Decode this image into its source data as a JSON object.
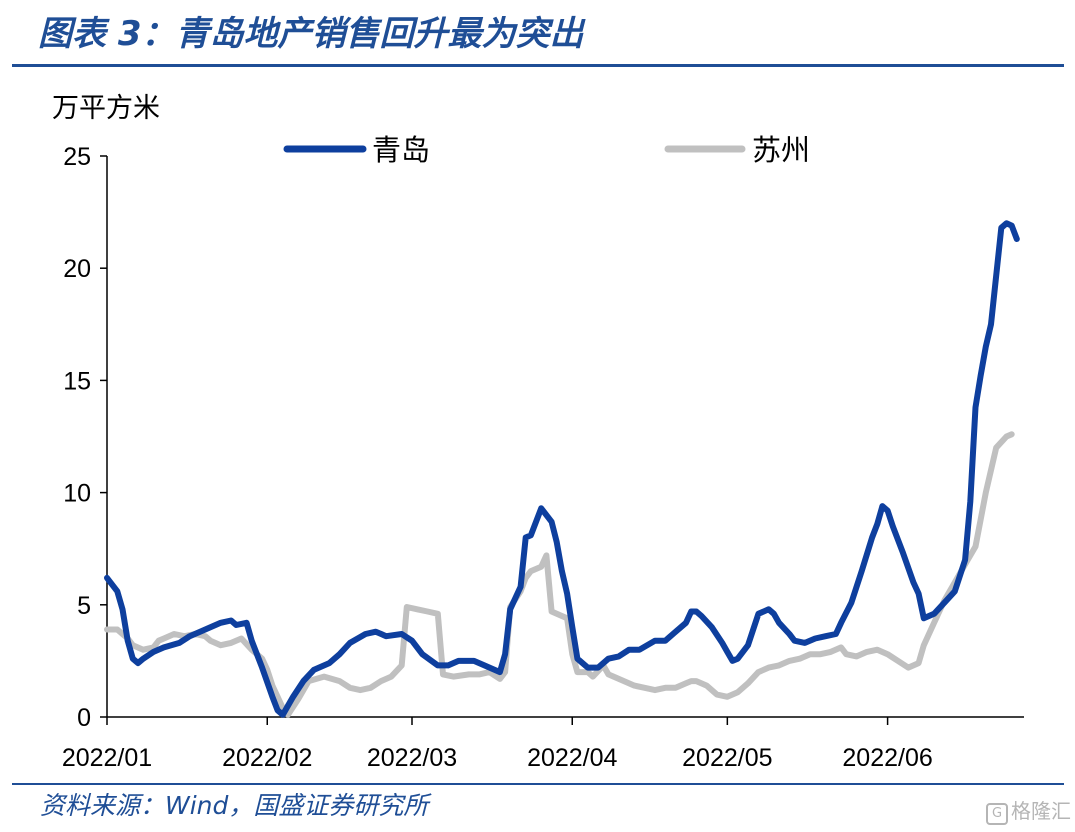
{
  "header": {
    "title": "图表 3：青岛地产销售回升最为突出"
  },
  "source": "资料来源：Wind，国盛证券研究所",
  "watermark": "格隆汇",
  "chart_data": {
    "type": "line",
    "unit_label": "万平方米",
    "x_labels": [
      "2022/01",
      "2022/02",
      "2022/03",
      "2022/04",
      "2022/05",
      "2022/06"
    ],
    "x_label_positions": [
      0,
      31,
      59,
      90,
      120,
      151
    ],
    "x_range": [
      0,
      177
    ],
    "y_ticks": [
      0,
      5,
      10,
      15,
      20,
      25
    ],
    "ylim": [
      0,
      25
    ],
    "legend_position": "top",
    "series": [
      {
        "name": "青岛",
        "color": "#0e3f9e",
        "points": [
          [
            0,
            6.2
          ],
          [
            2,
            5.6
          ],
          [
            3,
            4.8
          ],
          [
            4,
            3.4
          ],
          [
            5,
            2.6
          ],
          [
            6,
            2.4
          ],
          [
            7,
            2.6
          ],
          [
            9,
            2.9
          ],
          [
            11,
            3.1
          ],
          [
            14,
            3.3
          ],
          [
            16,
            3.6
          ],
          [
            18,
            3.8
          ],
          [
            20,
            4.0
          ],
          [
            22,
            4.2
          ],
          [
            24,
            4.3
          ],
          [
            25,
            4.1
          ],
          [
            27,
            4.2
          ],
          [
            28,
            3.4
          ],
          [
            30,
            2.2
          ],
          [
            32,
            0.9
          ],
          [
            33,
            0.3
          ],
          [
            34,
            0.1
          ],
          [
            36,
            0.9
          ],
          [
            38,
            1.6
          ],
          [
            40,
            2.1
          ],
          [
            43,
            2.4
          ],
          [
            45,
            2.8
          ],
          [
            47,
            3.3
          ],
          [
            50,
            3.7
          ],
          [
            52,
            3.8
          ],
          [
            54,
            3.6
          ],
          [
            57,
            3.7
          ],
          [
            59,
            3.4
          ],
          [
            61,
            2.8
          ],
          [
            64,
            2.3
          ],
          [
            66,
            2.3
          ],
          [
            68,
            2.5
          ],
          [
            71,
            2.5
          ],
          [
            73,
            2.3
          ],
          [
            76,
            2.0
          ],
          [
            77,
            2.8
          ],
          [
            78,
            4.8
          ],
          [
            80,
            5.8
          ],
          [
            81,
            8.0
          ],
          [
            82,
            8.1
          ],
          [
            84,
            9.3
          ],
          [
            86,
            8.7
          ],
          [
            87,
            7.8
          ],
          [
            88,
            6.5
          ],
          [
            89,
            5.5
          ],
          [
            90,
            4.0
          ],
          [
            91,
            2.6
          ],
          [
            93,
            2.2
          ],
          [
            95,
            2.2
          ],
          [
            97,
            2.6
          ],
          [
            99,
            2.7
          ],
          [
            101,
            3.0
          ],
          [
            103,
            3.0
          ],
          [
            106,
            3.4
          ],
          [
            108,
            3.4
          ],
          [
            110,
            3.8
          ],
          [
            112,
            4.2
          ],
          [
            113,
            4.7
          ],
          [
            114,
            4.7
          ],
          [
            115,
            4.5
          ],
          [
            117,
            4.0
          ],
          [
            119,
            3.3
          ],
          [
            120,
            2.9
          ],
          [
            121,
            2.5
          ],
          [
            122,
            2.6
          ],
          [
            124,
            3.2
          ],
          [
            126,
            4.6
          ],
          [
            128,
            4.8
          ],
          [
            129,
            4.6
          ],
          [
            130,
            4.2
          ],
          [
            132,
            3.7
          ],
          [
            133,
            3.4
          ],
          [
            135,
            3.3
          ],
          [
            137,
            3.5
          ],
          [
            139,
            3.6
          ],
          [
            141,
            3.7
          ],
          [
            142,
            4.2
          ],
          [
            144,
            5.1
          ],
          [
            146,
            6.5
          ],
          [
            148,
            8.0
          ],
          [
            149,
            8.6
          ],
          [
            150,
            9.4
          ],
          [
            151,
            9.2
          ],
          [
            152,
            8.5
          ],
          [
            154,
            7.3
          ],
          [
            156,
            6.0
          ],
          [
            157,
            5.5
          ],
          [
            158,
            4.4
          ],
          [
            160,
            4.6
          ],
          [
            162,
            5.1
          ],
          [
            164,
            5.6
          ],
          [
            166,
            7.0
          ],
          [
            167,
            9.6
          ],
          [
            168,
            13.8
          ],
          [
            169,
            15.2
          ],
          [
            170,
            16.5
          ],
          [
            171,
            17.5
          ],
          [
            173,
            21.8
          ],
          [
            174,
            22.0
          ],
          [
            175,
            21.9
          ],
          [
            176,
            21.3
          ]
        ]
      },
      {
        "name": "苏州",
        "color": "#c0c0c0",
        "points": [
          [
            0,
            3.9
          ],
          [
            2,
            3.9
          ],
          [
            4,
            3.5
          ],
          [
            5,
            3.2
          ],
          [
            7,
            3.0
          ],
          [
            9,
            3.1
          ],
          [
            10,
            3.4
          ],
          [
            11,
            3.5
          ],
          [
            13,
            3.7
          ],
          [
            15,
            3.6
          ],
          [
            17,
            3.7
          ],
          [
            19,
            3.6
          ],
          [
            20,
            3.4
          ],
          [
            22,
            3.2
          ],
          [
            24,
            3.3
          ],
          [
            26,
            3.5
          ],
          [
            28,
            3.0
          ],
          [
            30,
            2.6
          ],
          [
            31,
            2.1
          ],
          [
            32,
            1.4
          ],
          [
            34,
            0.4
          ],
          [
            35,
            0.1
          ],
          [
            37,
            0.8
          ],
          [
            39,
            1.6
          ],
          [
            42,
            1.8
          ],
          [
            45,
            1.6
          ],
          [
            47,
            1.3
          ],
          [
            49,
            1.2
          ],
          [
            51,
            1.3
          ],
          [
            53,
            1.6
          ],
          [
            55,
            1.8
          ],
          [
            57,
            2.3
          ],
          [
            58,
            4.9
          ],
          [
            60,
            4.8
          ],
          [
            62,
            4.7
          ],
          [
            64,
            4.6
          ],
          [
            65,
            1.9
          ],
          [
            67,
            1.8
          ],
          [
            70,
            1.9
          ],
          [
            72,
            1.9
          ],
          [
            74,
            2.0
          ],
          [
            76,
            1.7
          ],
          [
            77,
            2.0
          ],
          [
            78,
            4.9
          ],
          [
            80,
            5.6
          ],
          [
            81,
            6.2
          ],
          [
            82,
            6.5
          ],
          [
            84,
            6.7
          ],
          [
            85,
            7.2
          ],
          [
            86,
            4.7
          ],
          [
            88,
            4.5
          ],
          [
            89,
            4.4
          ],
          [
            90,
            2.8
          ],
          [
            91,
            2.0
          ],
          [
            93,
            2.0
          ],
          [
            94,
            1.8
          ],
          [
            96,
            2.3
          ],
          [
            97,
            1.9
          ],
          [
            99,
            1.7
          ],
          [
            102,
            1.4
          ],
          [
            104,
            1.3
          ],
          [
            106,
            1.2
          ],
          [
            108,
            1.3
          ],
          [
            110,
            1.3
          ],
          [
            112,
            1.5
          ],
          [
            113,
            1.6
          ],
          [
            114,
            1.6
          ],
          [
            116,
            1.4
          ],
          [
            118,
            1.0
          ],
          [
            120,
            0.9
          ],
          [
            122,
            1.1
          ],
          [
            124,
            1.5
          ],
          [
            126,
            2.0
          ],
          [
            128,
            2.2
          ],
          [
            130,
            2.3
          ],
          [
            132,
            2.5
          ],
          [
            134,
            2.6
          ],
          [
            136,
            2.8
          ],
          [
            138,
            2.8
          ],
          [
            140,
            2.9
          ],
          [
            142,
            3.1
          ],
          [
            143,
            2.8
          ],
          [
            145,
            2.7
          ],
          [
            147,
            2.9
          ],
          [
            149,
            3.0
          ],
          [
            151,
            2.8
          ],
          [
            153,
            2.5
          ],
          [
            155,
            2.2
          ],
          [
            157,
            2.4
          ],
          [
            158,
            3.2
          ],
          [
            160,
            4.2
          ],
          [
            162,
            5.2
          ],
          [
            164,
            6.0
          ],
          [
            166,
            6.8
          ],
          [
            168,
            7.6
          ],
          [
            170,
            10.0
          ],
          [
            172,
            12.0
          ],
          [
            174,
            12.5
          ],
          [
            175,
            12.6
          ]
        ]
      }
    ]
  }
}
